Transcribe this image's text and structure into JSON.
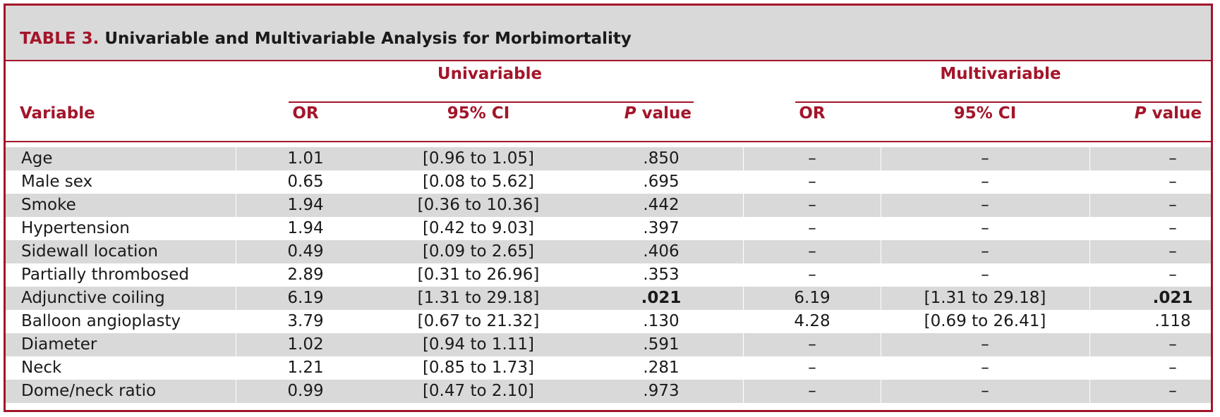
{
  "title": {
    "label": "TABLE 3.",
    "text": "Univariable and Multivariable Analysis for Morbimortality"
  },
  "groups": {
    "univariable": "Univariable",
    "multivariable": "Multivariable"
  },
  "columns": {
    "variable": "Variable",
    "or": "OR",
    "ci": "95% CI",
    "p_italic": "P",
    "p_rest": " value"
  },
  "rows": [
    {
      "variable": "Age",
      "u_or": "1.01",
      "u_ci": "[0.96 to 1.05]",
      "u_p": ".850",
      "m_or": "–",
      "m_ci": "–",
      "m_p": "–"
    },
    {
      "variable": "Male sex",
      "u_or": "0.65",
      "u_ci": "[0.08 to 5.62]",
      "u_p": ".695",
      "m_or": "–",
      "m_ci": "–",
      "m_p": "–"
    },
    {
      "variable": "Smoke",
      "u_or": "1.94",
      "u_ci": "[0.36 to 10.36]",
      "u_p": ".442",
      "m_or": "–",
      "m_ci": "–",
      "m_p": "–"
    },
    {
      "variable": "Hypertension",
      "u_or": "1.94",
      "u_ci": "[0.42 to 9.03]",
      "u_p": ".397",
      "m_or": "–",
      "m_ci": "–",
      "m_p": "–"
    },
    {
      "variable": "Sidewall location",
      "u_or": "0.49",
      "u_ci": "[0.09 to 2.65]",
      "u_p": ".406",
      "m_or": "–",
      "m_ci": "–",
      "m_p": "–"
    },
    {
      "variable": "Partially thrombosed",
      "u_or": "2.89",
      "u_ci": "[0.31 to 26.96]",
      "u_p": ".353",
      "m_or": "–",
      "m_ci": "–",
      "m_p": "–"
    },
    {
      "variable": "Adjunctive coiling",
      "u_or": "6.19",
      "u_ci": "[1.31 to 29.18]",
      "u_p": ".021",
      "m_or": "6.19",
      "m_ci": "[1.31 to 29.18]",
      "m_p": ".021",
      "significant": true
    },
    {
      "variable": "Balloon angioplasty",
      "u_or": "3.79",
      "u_ci": "[0.67 to 21.32]",
      "u_p": ".130",
      "m_or": "4.28",
      "m_ci": "[0.69 to 26.41]",
      "m_p": ".118"
    },
    {
      "variable": "Diameter",
      "u_or": "1.02",
      "u_ci": "[0.94 to 1.11]",
      "u_p": ".591",
      "m_or": "–",
      "m_ci": "–",
      "m_p": "–"
    },
    {
      "variable": "Neck",
      "u_or": "1.21",
      "u_ci": "[0.85 to 1.73]",
      "u_p": ".281",
      "m_or": "–",
      "m_ci": "–",
      "m_p": "–"
    },
    {
      "variable": "Dome/neck ratio",
      "u_or": "0.99",
      "u_ci": "[0.47 to 2.10]",
      "u_p": ".973",
      "m_or": "–",
      "m_ci": "–",
      "m_p": "–"
    }
  ],
  "colors": {
    "accent": "#a3152a",
    "shade": "#d9d9d9",
    "text": "#1a1a1a"
  }
}
